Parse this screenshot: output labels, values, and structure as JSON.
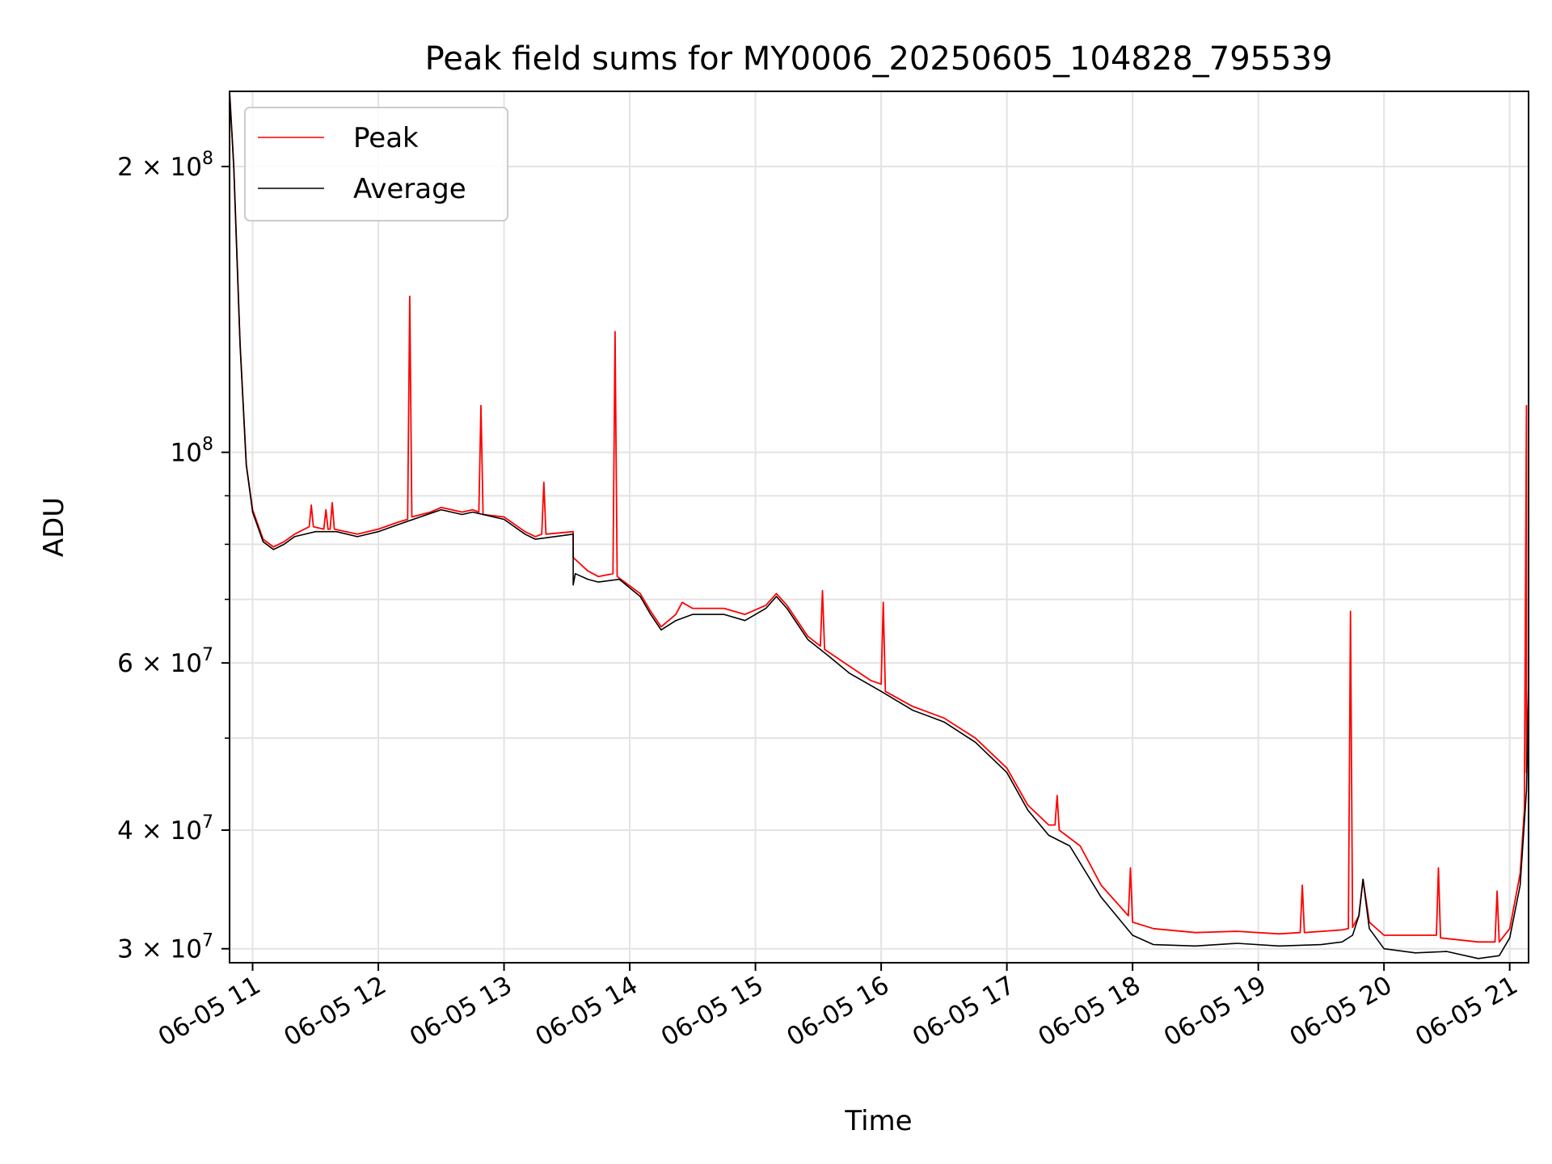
{
  "chart_data": {
    "type": "line",
    "title": "Peak field sums for MY0006_20250605_104828_795539",
    "xlabel": "Time",
    "ylabel": "ADU",
    "yscale": "log",
    "grid": true,
    "legend_position": "top-left",
    "xlim": [
      "2025-06-05 10:49",
      "2025-06-05 21:09"
    ],
    "ylim": [
      29000000,
      240000000
    ],
    "x_ticks": [
      "06-05 11",
      "06-05 12",
      "06-05 13",
      "06-05 14",
      "06-05 15",
      "06-05 16",
      "06-05 17",
      "06-05 18",
      "06-05 19",
      "06-05 20",
      "06-05 21"
    ],
    "x_tick_values": [
      "2025-06-05 11:00",
      "2025-06-05 12:00",
      "2025-06-05 13:00",
      "2025-06-05 14:00",
      "2025-06-05 15:00",
      "2025-06-05 16:00",
      "2025-06-05 17:00",
      "2025-06-05 18:00",
      "2025-06-05 19:00",
      "2025-06-05 20:00",
      "2025-06-05 21:00"
    ],
    "y_major_ticks": [
      {
        "value": 30000000,
        "mant": "3",
        "exp": "7"
      },
      {
        "value": 40000000,
        "mant": "4",
        "exp": "7"
      },
      {
        "value": 60000000,
        "mant": "6",
        "exp": "7"
      },
      {
        "value": 100000000,
        "mant": "",
        "exp": "8"
      },
      {
        "value": 200000000,
        "mant": "2",
        "exp": "8"
      }
    ],
    "y_minor_gridlines": [
      50000000,
      70000000,
      80000000,
      90000000
    ],
    "series": [
      {
        "name": "Peak",
        "color": "#ff0000",
        "points": [
          [
            "2025-06-05 10:49",
            240000000
          ],
          [
            "2025-06-05 10:51",
            200000000
          ],
          [
            "2025-06-05 10:54",
            130000000
          ],
          [
            "2025-06-05 10:57",
            97000000
          ],
          [
            "2025-06-05 11:00",
            87000000
          ],
          [
            "2025-06-05 11:05",
            81000000
          ],
          [
            "2025-06-05 11:10",
            79500000
          ],
          [
            "2025-06-05 11:15",
            80500000
          ],
          [
            "2025-06-05 11:20",
            82000000
          ],
          [
            "2025-06-05 11:27",
            83500000
          ],
          [
            "2025-06-05 11:28",
            88000000
          ],
          [
            "2025-06-05 11:29",
            83500000
          ],
          [
            "2025-06-05 11:34",
            83000000
          ],
          [
            "2025-06-05 11:35",
            87000000
          ],
          [
            "2025-06-05 11:36",
            83000000
          ],
          [
            "2025-06-05 11:37",
            83000000
          ],
          [
            "2025-06-05 11:38",
            88500000
          ],
          [
            "2025-06-05 11:39",
            83000000
          ],
          [
            "2025-06-05 11:50",
            82000000
          ],
          [
            "2025-06-05 12:00",
            83000000
          ],
          [
            "2025-06-05 12:10",
            84500000
          ],
          [
            "2025-06-05 12:14",
            85000000
          ],
          [
            "2025-06-05 12:15",
            146000000
          ],
          [
            "2025-06-05 12:16",
            85500000
          ],
          [
            "2025-06-05 12:25",
            86500000
          ],
          [
            "2025-06-05 12:30",
            87500000
          ],
          [
            "2025-06-05 12:40",
            86500000
          ],
          [
            "2025-06-05 12:45",
            87000000
          ],
          [
            "2025-06-05 12:48",
            86500000
          ],
          [
            "2025-06-05 12:49",
            112000000
          ],
          [
            "2025-06-05 12:50",
            86000000
          ],
          [
            "2025-06-05 13:00",
            85500000
          ],
          [
            "2025-06-05 13:10",
            82500000
          ],
          [
            "2025-06-05 13:15",
            81500000
          ],
          [
            "2025-06-05 13:18",
            82000000
          ],
          [
            "2025-06-05 13:19",
            93000000
          ],
          [
            "2025-06-05 13:20",
            82000000
          ],
          [
            "2025-06-05 13:33",
            82500000
          ],
          [
            "2025-06-05 13:33",
            77500000
          ],
          [
            "2025-06-05 13:40",
            75000000
          ],
          [
            "2025-06-05 13:45",
            74000000
          ],
          [
            "2025-06-05 13:52",
            74500000
          ],
          [
            "2025-06-05 13:53",
            134000000
          ],
          [
            "2025-06-05 13:54",
            74000000
          ],
          [
            "2025-06-05 14:05",
            71000000
          ],
          [
            "2025-06-05 14:10",
            68000000
          ],
          [
            "2025-06-05 14:15",
            65500000
          ],
          [
            "2025-06-05 14:22",
            67500000
          ],
          [
            "2025-06-05 14:25",
            69500000
          ],
          [
            "2025-06-05 14:30",
            68500000
          ],
          [
            "2025-06-05 14:45",
            68500000
          ],
          [
            "2025-06-05 14:55",
            67500000
          ],
          [
            "2025-06-05 15:05",
            69000000
          ],
          [
            "2025-06-05 15:10",
            71000000
          ],
          [
            "2025-06-05 15:15",
            69000000
          ],
          [
            "2025-06-05 15:25",
            64000000
          ],
          [
            "2025-06-05 15:31",
            62500000
          ],
          [
            "2025-06-05 15:32",
            71500000
          ],
          [
            "2025-06-05 15:33",
            62000000
          ],
          [
            "2025-06-05 15:45",
            59500000
          ],
          [
            "2025-06-05 15:55",
            57500000
          ],
          [
            "2025-06-05 16:00",
            57000000
          ],
          [
            "2025-06-05 16:01",
            69500000
          ],
          [
            "2025-06-05 16:02",
            56000000
          ],
          [
            "2025-06-05 16:15",
            54000000
          ],
          [
            "2025-06-05 16:30",
            52500000
          ],
          [
            "2025-06-05 16:45",
            50000000
          ],
          [
            "2025-06-05 17:00",
            46500000
          ],
          [
            "2025-06-05 17:10",
            42500000
          ],
          [
            "2025-06-05 17:20",
            40500000
          ],
          [
            "2025-06-05 17:23",
            40500000
          ],
          [
            "2025-06-05 17:24",
            43500000
          ],
          [
            "2025-06-05 17:25",
            40000000
          ],
          [
            "2025-06-05 17:35",
            38500000
          ],
          [
            "2025-06-05 17:45",
            35000000
          ],
          [
            "2025-06-05 17:58",
            32500000
          ],
          [
            "2025-06-05 17:59",
            36500000
          ],
          [
            "2025-06-05 18:00",
            32000000
          ],
          [
            "2025-06-05 18:10",
            31500000
          ],
          [
            "2025-06-05 18:30",
            31200000
          ],
          [
            "2025-06-05 18:50",
            31300000
          ],
          [
            "2025-06-05 19:10",
            31100000
          ],
          [
            "2025-06-05 19:20",
            31200000
          ],
          [
            "2025-06-05 19:21",
            35000000
          ],
          [
            "2025-06-05 19:22",
            31200000
          ],
          [
            "2025-06-05 19:40",
            31400000
          ],
          [
            "2025-06-05 19:43",
            31500000
          ],
          [
            "2025-06-05 19:44",
            68000000
          ],
          [
            "2025-06-05 19:45",
            31600000
          ],
          [
            "2025-06-05 19:48",
            32500000
          ],
          [
            "2025-06-05 19:50",
            35500000
          ],
          [
            "2025-06-05 19:53",
            32000000
          ],
          [
            "2025-06-05 20:00",
            31000000
          ],
          [
            "2025-06-05 20:20",
            31000000
          ],
          [
            "2025-06-05 20:25",
            31000000
          ],
          [
            "2025-06-05 20:26",
            36500000
          ],
          [
            "2025-06-05 20:27",
            30800000
          ],
          [
            "2025-06-05 20:45",
            30500000
          ],
          [
            "2025-06-05 20:53",
            30500000
          ],
          [
            "2025-06-05 20:54",
            34500000
          ],
          [
            "2025-06-05 20:55",
            30500000
          ],
          [
            "2025-06-05 21:00",
            31500000
          ],
          [
            "2025-06-05 21:05",
            36000000
          ],
          [
            "2025-06-05 21:07",
            42000000
          ],
          [
            "2025-06-05 21:08",
            112000000
          ],
          [
            "2025-06-05 21:08",
            46000000
          ],
          [
            "2025-06-05 21:10",
            70000000
          ],
          [
            "2025-06-05 21:13",
            150000000
          ],
          [
            "2025-06-05 21:16",
            240000000
          ]
        ]
      },
      {
        "name": "Average",
        "color": "#000000",
        "points": [
          [
            "2025-06-05 10:49",
            240000000
          ],
          [
            "2025-06-05 10:51",
            200000000
          ],
          [
            "2025-06-05 10:54",
            130000000
          ],
          [
            "2025-06-05 10:57",
            97000000
          ],
          [
            "2025-06-05 11:00",
            86500000
          ],
          [
            "2025-06-05 11:05",
            80500000
          ],
          [
            "2025-06-05 11:10",
            79000000
          ],
          [
            "2025-06-05 11:15",
            80000000
          ],
          [
            "2025-06-05 11:20",
            81500000
          ],
          [
            "2025-06-05 11:30",
            82500000
          ],
          [
            "2025-06-05 11:40",
            82500000
          ],
          [
            "2025-06-05 11:50",
            81500000
          ],
          [
            "2025-06-05 12:00",
            82500000
          ],
          [
            "2025-06-05 12:10",
            84000000
          ],
          [
            "2025-06-05 12:20",
            85500000
          ],
          [
            "2025-06-05 12:30",
            87000000
          ],
          [
            "2025-06-05 12:40",
            86000000
          ],
          [
            "2025-06-05 12:45",
            86500000
          ],
          [
            "2025-06-05 13:00",
            85000000
          ],
          [
            "2025-06-05 13:10",
            82000000
          ],
          [
            "2025-06-05 13:15",
            81000000
          ],
          [
            "2025-06-05 13:33",
            82000000
          ],
          [
            "2025-06-05 13:33",
            72500000
          ],
          [
            "2025-06-05 13:34",
            74500000
          ],
          [
            "2025-06-05 13:40",
            73500000
          ],
          [
            "2025-06-05 13:45",
            73000000
          ],
          [
            "2025-06-05 13:55",
            73500000
          ],
          [
            "2025-06-05 14:05",
            70500000
          ],
          [
            "2025-06-05 14:10",
            67500000
          ],
          [
            "2025-06-05 14:15",
            65000000
          ],
          [
            "2025-06-05 14:22",
            66500000
          ],
          [
            "2025-06-05 14:30",
            67500000
          ],
          [
            "2025-06-05 14:45",
            67500000
          ],
          [
            "2025-06-05 14:55",
            66500000
          ],
          [
            "2025-06-05 15:05",
            68500000
          ],
          [
            "2025-06-05 15:10",
            70500000
          ],
          [
            "2025-06-05 15:15",
            68500000
          ],
          [
            "2025-06-05 15:25",
            63500000
          ],
          [
            "2025-06-05 15:35",
            61000000
          ],
          [
            "2025-06-05 15:45",
            58500000
          ],
          [
            "2025-06-05 16:00",
            56000000
          ],
          [
            "2025-06-05 16:15",
            53500000
          ],
          [
            "2025-06-05 16:30",
            52000000
          ],
          [
            "2025-06-05 16:45",
            49500000
          ],
          [
            "2025-06-05 17:00",
            46000000
          ],
          [
            "2025-06-05 17:10",
            42000000
          ],
          [
            "2025-06-05 17:20",
            39500000
          ],
          [
            "2025-06-05 17:30",
            38500000
          ],
          [
            "2025-06-05 17:45",
            34000000
          ],
          [
            "2025-06-05 18:00",
            31000000
          ],
          [
            "2025-06-05 18:10",
            30300000
          ],
          [
            "2025-06-05 18:30",
            30200000
          ],
          [
            "2025-06-05 18:50",
            30400000
          ],
          [
            "2025-06-05 19:10",
            30200000
          ],
          [
            "2025-06-05 19:30",
            30300000
          ],
          [
            "2025-06-05 19:40",
            30500000
          ],
          [
            "2025-06-05 19:45",
            31000000
          ],
          [
            "2025-06-05 19:48",
            32500000
          ],
          [
            "2025-06-05 19:50",
            35500000
          ],
          [
            "2025-06-05 19:53",
            31500000
          ],
          [
            "2025-06-05 20:00",
            30000000
          ],
          [
            "2025-06-05 20:15",
            29700000
          ],
          [
            "2025-06-05 20:30",
            29800000
          ],
          [
            "2025-06-05 20:45",
            29300000
          ],
          [
            "2025-06-05 20:55",
            29500000
          ],
          [
            "2025-06-05 21:00",
            30800000
          ],
          [
            "2025-06-05 21:05",
            35000000
          ],
          [
            "2025-06-05 21:08",
            44000000
          ],
          [
            "2025-06-05 21:10",
            70000000
          ],
          [
            "2025-06-05 21:13",
            150000000
          ],
          [
            "2025-06-05 21:16",
            240000000
          ]
        ]
      }
    ]
  }
}
